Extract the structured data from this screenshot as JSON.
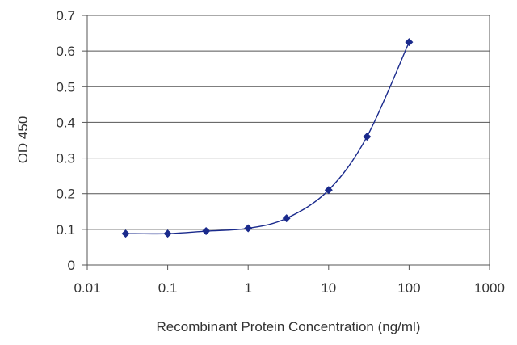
{
  "chart_data": {
    "type": "scatter",
    "title": "",
    "xlabel": "Recombinant Protein Concentration (ng/ml)",
    "ylabel": "OD 450",
    "x_scale": "log",
    "xlim": [
      0.01,
      1000
    ],
    "ylim": [
      0,
      0.7
    ],
    "grid": "horizontal",
    "legend": "none",
    "x_tick_labels": [
      "0.01",
      "0.1",
      "1",
      "10",
      "100",
      "1000"
    ],
    "y_tick_labels": [
      "0",
      "0.1",
      "0.2",
      "0.3",
      "0.4",
      "0.5",
      "0.6",
      "0.7"
    ],
    "series": [
      {
        "x": [
          0.03,
          0.1,
          0.3,
          1,
          3,
          10,
          30,
          100
        ],
        "y": [
          0.088,
          0.088,
          0.095,
          0.103,
          0.131,
          0.21,
          0.36,
          0.625
        ],
        "color": "#1a2a8c",
        "line": "smooth"
      }
    ]
  }
}
